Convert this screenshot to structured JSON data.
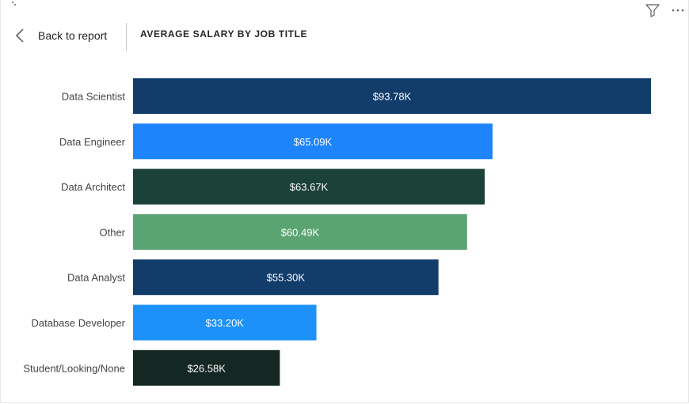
{
  "header": {
    "back_label": "Back to report",
    "title": "AVERAGE SALARY BY JOB TITLE",
    "icons": [
      "chevron-left-icon",
      "filter-icon",
      "more-options-icon"
    ]
  },
  "chart_data": {
    "type": "bar",
    "orientation": "horizontal",
    "title": "AVERAGE SALARY BY JOB TITLE",
    "xlabel": "",
    "ylabel": "",
    "xlim": [
      0,
      93.78
    ],
    "grid": false,
    "legend": "none",
    "categories": [
      "Data Scientist",
      "Data Engineer",
      "Data Architect",
      "Other",
      "Data Analyst",
      "Database Developer",
      "Student/Looking/None"
    ],
    "values": [
      93.78,
      65.09,
      63.67,
      60.49,
      55.3,
      33.2,
      26.58
    ],
    "data_labels": [
      "$93.78K",
      "$65.09K",
      "$63.67K",
      "$60.49K",
      "$55.30K",
      "$33.20K",
      "$26.58K"
    ],
    "colors": [
      "#123d6b",
      "#1e84fc",
      "#1b4139",
      "#5aa472",
      "#123d6b",
      "#1c91f9",
      "#142722"
    ]
  }
}
